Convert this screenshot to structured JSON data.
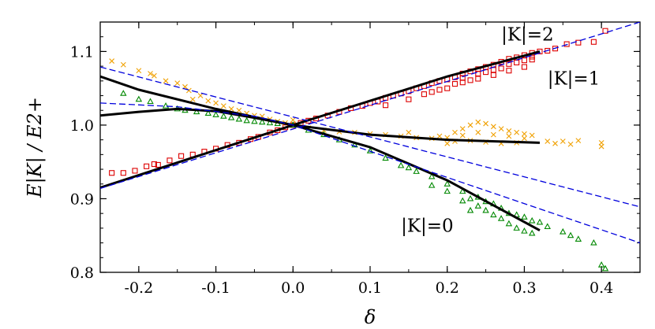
{
  "chart_data": {
    "type": "scatter",
    "xlabel": "δ",
    "ylabel": "E|K| / E2+",
    "xlim": [
      -0.25,
      0.45
    ],
    "ylim": [
      0.8,
      1.14
    ],
    "xticks": [
      -0.2,
      -0.1,
      0.0,
      0.1,
      0.2,
      0.3,
      0.4
    ],
    "xtick_labels": [
      "-0.2",
      "-0.1",
      "0.0",
      "0.1",
      "0.2",
      "0.3",
      "0.4"
    ],
    "yticks": [
      0.8,
      0.9,
      1.0,
      1.1
    ],
    "ytick_labels": [
      "0.8",
      "0.9",
      "1.0",
      "1.1"
    ],
    "grid": false,
    "legend": false,
    "annotations": [
      {
        "text": "|K|=2",
        "x": 0.27,
        "y": 1.115
      },
      {
        "text": "|K|=1",
        "x": 0.33,
        "y": 1.055
      },
      {
        "text": "|K|=0",
        "x": 0.14,
        "y": 0.855
      }
    ],
    "fits": [
      {
        "name": "fit-k2",
        "color": "#000000",
        "dash": false,
        "points": [
          [
            -0.25,
            0.915
          ],
          [
            0.0,
            1.0
          ],
          [
            0.1,
            1.033
          ],
          [
            0.2,
            1.066
          ],
          [
            0.32,
            1.1
          ]
        ]
      },
      {
        "name": "fit-k1",
        "color": "#000000",
        "dash": false,
        "points": [
          [
            -0.25,
            1.013
          ],
          [
            -0.2,
            1.018
          ],
          [
            -0.15,
            1.022
          ],
          [
            -0.1,
            1.019
          ],
          [
            -0.05,
            1.01
          ],
          [
            0.0,
            1.0
          ],
          [
            0.1,
            0.987
          ],
          [
            0.2,
            0.98
          ],
          [
            0.32,
            0.976
          ]
        ]
      },
      {
        "name": "fit-k0",
        "color": "#000000",
        "dash": false,
        "points": [
          [
            -0.25,
            1.066
          ],
          [
            -0.2,
            1.048
          ],
          [
            -0.1,
            1.022
          ],
          [
            0.0,
            1.0
          ],
          [
            0.1,
            0.97
          ],
          [
            0.2,
            0.925
          ],
          [
            0.32,
            0.857
          ]
        ]
      },
      {
        "name": "linear-k2",
        "color": "#0000dd",
        "dash": true,
        "points": [
          [
            -0.25,
            0.914
          ],
          [
            0.45,
            1.14
          ]
        ]
      },
      {
        "name": "linear-k1",
        "color": "#0000dd",
        "dash": true,
        "points": [
          [
            -0.25,
            1.079
          ],
          [
            0.45,
            0.889
          ]
        ]
      },
      {
        "name": "linear-k0",
        "color": "#0000dd",
        "dash": true,
        "points": [
          [
            -0.25,
            1.03
          ],
          [
            -0.15,
            1.025
          ],
          [
            -0.05,
            1.012
          ],
          [
            0.0,
            1.0
          ],
          [
            0.45,
            0.84
          ]
        ]
      }
    ],
    "series": [
      {
        "name": "",
        "k": 2,
        "marker": "square",
        "color": "#dd0000",
        "points": [
          [
            -0.235,
            0.935
          ],
          [
            -0.22,
            0.935
          ],
          [
            -0.205,
            0.938
          ],
          [
            -0.19,
            0.944
          ],
          [
            -0.18,
            0.947
          ],
          [
            -0.175,
            0.946
          ],
          [
            -0.16,
            0.952
          ],
          [
            -0.145,
            0.958
          ],
          [
            -0.13,
            0.96
          ],
          [
            -0.115,
            0.964
          ],
          [
            -0.1,
            0.968
          ],
          [
            -0.085,
            0.973
          ],
          [
            -0.07,
            0.976
          ],
          [
            -0.055,
            0.981
          ],
          [
            -0.045,
            0.984
          ],
          [
            -0.03,
            0.99
          ],
          [
            -0.02,
            0.993
          ],
          [
            -0.01,
            0.997
          ],
          [
            0.0,
            1.0
          ],
          [
            0.01,
            1.003
          ],
          [
            0.02,
            1.006
          ],
          [
            0.03,
            1.009
          ],
          [
            0.045,
            1.013
          ],
          [
            0.06,
            1.018
          ],
          [
            0.075,
            1.023
          ],
          [
            0.09,
            1.026
          ],
          [
            0.1,
            1.03
          ],
          [
            0.11,
            1.032
          ],
          [
            0.12,
            1.037
          ],
          [
            0.13,
            1.04
          ],
          [
            0.14,
            1.043
          ],
          [
            0.15,
            1.046
          ],
          [
            0.16,
            1.05
          ],
          [
            0.17,
            1.053
          ],
          [
            0.18,
            1.057
          ],
          [
            0.19,
            1.06
          ],
          [
            0.2,
            1.062
          ],
          [
            0.21,
            1.065
          ],
          [
            0.22,
            1.07
          ],
          [
            0.23,
            1.073
          ],
          [
            0.24,
            1.076
          ],
          [
            0.25,
            1.079
          ],
          [
            0.26,
            1.082
          ],
          [
            0.27,
            1.086
          ],
          [
            0.28,
            1.09
          ],
          [
            0.29,
            1.092
          ],
          [
            0.3,
            1.095
          ],
          [
            0.31,
            1.098
          ],
          [
            0.32,
            1.1
          ],
          [
            0.12,
            1.027
          ],
          [
            0.15,
            1.035
          ],
          [
            0.18,
            1.045
          ],
          [
            0.2,
            1.05
          ],
          [
            0.22,
            1.058
          ],
          [
            0.24,
            1.063
          ],
          [
            0.26,
            1.068
          ],
          [
            0.28,
            1.074
          ],
          [
            0.3,
            1.079
          ],
          [
            0.24,
            1.07
          ],
          [
            0.27,
            1.077
          ],
          [
            0.29,
            1.085
          ],
          [
            0.31,
            1.089
          ],
          [
            0.22,
            1.064
          ],
          [
            0.25,
            1.072
          ],
          [
            0.28,
            1.083
          ],
          [
            0.3,
            1.088
          ],
          [
            0.17,
            1.042
          ],
          [
            0.19,
            1.048
          ],
          [
            0.21,
            1.056
          ],
          [
            0.23,
            1.061
          ],
          [
            0.26,
            1.075
          ],
          [
            0.31,
            1.093
          ],
          [
            0.33,
            1.101
          ],
          [
            0.34,
            1.104
          ],
          [
            0.355,
            1.11
          ],
          [
            0.37,
            1.112
          ],
          [
            0.39,
            1.113
          ],
          [
            0.405,
            1.128
          ]
        ]
      },
      {
        "name": "",
        "k": 1,
        "marker": "cross",
        "color": "#f0a000",
        "points": [
          [
            -0.235,
            1.087
          ],
          [
            -0.22,
            1.082
          ],
          [
            -0.2,
            1.074
          ],
          [
            -0.185,
            1.07
          ],
          [
            -0.18,
            1.067
          ],
          [
            -0.165,
            1.06
          ],
          [
            -0.15,
            1.057
          ],
          [
            -0.14,
            1.052
          ],
          [
            -0.135,
            1.047
          ],
          [
            -0.13,
            1.035
          ],
          [
            -0.12,
            1.04
          ],
          [
            -0.11,
            1.033
          ],
          [
            -0.1,
            1.03
          ],
          [
            -0.09,
            1.026
          ],
          [
            -0.08,
            1.022
          ],
          [
            -0.07,
            1.02
          ],
          [
            -0.06,
            1.016
          ],
          [
            -0.05,
            1.013
          ],
          [
            -0.04,
            1.012
          ],
          [
            -0.03,
            1.008
          ],
          [
            -0.02,
            1.005
          ],
          [
            -0.01,
            1.003
          ],
          [
            0.0,
            1.0
          ],
          [
            0.0,
            1.007
          ],
          [
            0.02,
            0.996
          ],
          [
            0.04,
            0.993
          ],
          [
            0.06,
            0.991
          ],
          [
            0.08,
            0.99
          ],
          [
            0.1,
            0.988
          ],
          [
            0.12,
            0.987
          ],
          [
            0.14,
            0.985
          ],
          [
            0.16,
            0.983
          ],
          [
            0.18,
            0.982
          ],
          [
            0.2,
            0.983
          ],
          [
            0.21,
            0.99
          ],
          [
            0.22,
            0.995
          ],
          [
            0.23,
            1.0
          ],
          [
            0.24,
            1.004
          ],
          [
            0.25,
            1.002
          ],
          [
            0.26,
            0.998
          ],
          [
            0.27,
            0.995
          ],
          [
            0.28,
            0.992
          ],
          [
            0.29,
            0.99
          ],
          [
            0.3,
            0.988
          ],
          [
            0.31,
            0.986
          ],
          [
            0.22,
            0.986
          ],
          [
            0.24,
            0.99
          ],
          [
            0.26,
            0.987
          ],
          [
            0.28,
            0.985
          ],
          [
            0.3,
            0.982
          ],
          [
            0.23,
            0.979
          ],
          [
            0.25,
            0.977
          ],
          [
            0.27,
            0.975
          ],
          [
            0.29,
            0.976
          ],
          [
            0.33,
            0.978
          ],
          [
            0.34,
            0.975
          ],
          [
            0.35,
            0.978
          ],
          [
            0.36,
            0.974
          ],
          [
            0.37,
            0.979
          ],
          [
            0.4,
            0.976
          ],
          [
            0.4,
            0.971
          ],
          [
            0.2,
            0.975
          ],
          [
            0.21,
            0.978
          ],
          [
            0.19,
            0.985
          ],
          [
            0.15,
            0.99
          ]
        ]
      },
      {
        "name": "",
        "k": 0,
        "marker": "triangle",
        "color": "#008800",
        "points": [
          [
            -0.22,
            1.043
          ],
          [
            -0.2,
            1.035
          ],
          [
            -0.185,
            1.032
          ],
          [
            -0.165,
            1.026
          ],
          [
            -0.15,
            1.022
          ],
          [
            -0.14,
            1.02
          ],
          [
            -0.125,
            1.018
          ],
          [
            -0.11,
            1.016
          ],
          [
            -0.1,
            1.014
          ],
          [
            -0.09,
            1.012
          ],
          [
            -0.08,
            1.01
          ],
          [
            -0.07,
            1.008
          ],
          [
            -0.06,
            1.006
          ],
          [
            -0.05,
            1.005
          ],
          [
            -0.04,
            1.004
          ],
          [
            -0.03,
            1.003
          ],
          [
            -0.02,
            1.002
          ],
          [
            0.0,
            1.0
          ],
          [
            0.02,
            0.993
          ],
          [
            0.04,
            0.987
          ],
          [
            0.06,
            0.98
          ],
          [
            0.08,
            0.973
          ],
          [
            0.1,
            0.965
          ],
          [
            0.12,
            0.955
          ],
          [
            0.14,
            0.945
          ],
          [
            0.16,
            0.937
          ],
          [
            0.18,
            0.93
          ],
          [
            0.2,
            0.92
          ],
          [
            0.22,
            0.91
          ],
          [
            0.23,
            0.9
          ],
          [
            0.24,
            0.89
          ],
          [
            0.25,
            0.884
          ],
          [
            0.26,
            0.878
          ],
          [
            0.27,
            0.873
          ],
          [
            0.28,
            0.866
          ],
          [
            0.29,
            0.86
          ],
          [
            0.3,
            0.856
          ],
          [
            0.31,
            0.853
          ],
          [
            0.22,
            0.897
          ],
          [
            0.24,
            0.902
          ],
          [
            0.26,
            0.893
          ],
          [
            0.28,
            0.88
          ],
          [
            0.3,
            0.875
          ],
          [
            0.32,
            0.868
          ],
          [
            0.23,
            0.884
          ],
          [
            0.25,
            0.896
          ],
          [
            0.27,
            0.887
          ],
          [
            0.29,
            0.878
          ],
          [
            0.31,
            0.87
          ],
          [
            0.33,
            0.862
          ],
          [
            0.35,
            0.855
          ],
          [
            0.36,
            0.85
          ],
          [
            0.37,
            0.845
          ],
          [
            0.39,
            0.84
          ],
          [
            0.4,
            0.81
          ],
          [
            0.405,
            0.805
          ],
          [
            0.18,
            0.918
          ],
          [
            0.2,
            0.91
          ],
          [
            0.15,
            0.942
          ]
        ]
      }
    ]
  }
}
